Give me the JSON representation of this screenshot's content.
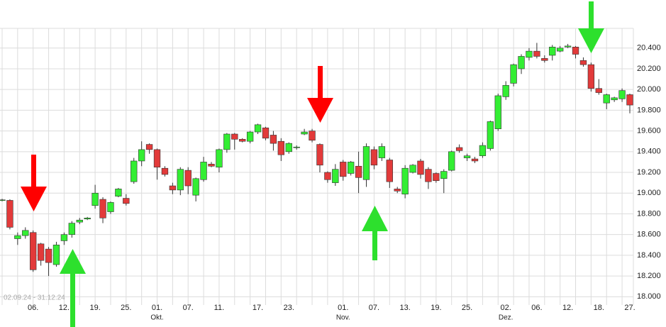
{
  "chart_data": {
    "type": "candlestick",
    "range_label": "02.09.24 - 31.12.24",
    "categories": [
      null,
      null,
      null,
      null,
      "06.",
      null,
      null,
      null,
      "12.",
      null,
      null,
      null,
      "19.",
      null,
      null,
      null,
      "25.",
      null,
      null,
      null,
      "01.",
      null,
      null,
      null,
      "07.",
      null,
      null,
      null,
      "11.",
      null,
      null,
      null,
      null,
      "17.",
      null,
      null,
      null,
      "23.",
      null,
      null,
      null,
      null,
      null,
      null,
      "01.",
      null,
      null,
      null,
      "07.",
      null,
      null,
      null,
      "13.",
      null,
      null,
      null,
      "19.",
      null,
      null,
      null,
      "25.",
      null,
      null,
      null,
      null,
      "02.",
      null,
      null,
      null,
      "06.",
      null,
      null,
      null,
      "12.",
      null,
      null,
      null,
      "18.",
      null,
      null,
      null,
      "27."
    ],
    "category_months": [
      null,
      null,
      null,
      null,
      null,
      null,
      null,
      null,
      null,
      null,
      null,
      null,
      null,
      null,
      null,
      null,
      null,
      null,
      null,
      null,
      "Okt.",
      null,
      null,
      null,
      null,
      null,
      null,
      null,
      null,
      null,
      null,
      null,
      null,
      null,
      null,
      null,
      null,
      null,
      null,
      null,
      null,
      null,
      null,
      null,
      "Nov.",
      null,
      null,
      null,
      null,
      null,
      null,
      null,
      null,
      null,
      null,
      null,
      null,
      null,
      null,
      null,
      null,
      null,
      null,
      null,
      null,
      "Dez.",
      null,
      null,
      null,
      null,
      null,
      null,
      null,
      null,
      null,
      null,
      null,
      null,
      null,
      null,
      null,
      null
    ],
    "candles": {
      "open": [
        18930,
        18930,
        18560,
        18590,
        18620,
        18510,
        18460,
        18310,
        18540,
        18600,
        18720,
        18750,
        18880,
        18940,
        18820,
        18970,
        18950,
        19110,
        19310,
        19470,
        19420,
        19240,
        19070,
        19030,
        19220,
        18980,
        19130,
        19280,
        19250,
        19420,
        19570,
        19520,
        19500,
        19590,
        19630,
        19560,
        19500,
        19400,
        19440,
        19570,
        19600,
        19470,
        19200,
        19100,
        19300,
        19190,
        19260,
        19130,
        19420,
        19340,
        19320,
        19040,
        18990,
        19200,
        19310,
        19230,
        19190,
        19140,
        19220,
        19440,
        19340,
        19330,
        19360,
        19430,
        19620,
        19930,
        20060,
        20200,
        20310,
        20370,
        20300,
        20330,
        20370,
        20410,
        20410,
        20280,
        20240,
        20010,
        19870,
        19900,
        19910,
        19950
      ],
      "high": [
        18945,
        18940,
        18620,
        18670,
        18640,
        18520,
        18480,
        18530,
        18620,
        18730,
        18760,
        18770,
        19080,
        18960,
        18920,
        19050,
        18990,
        19340,
        19500,
        19480,
        19430,
        19260,
        19100,
        19250,
        19250,
        19150,
        19350,
        19300,
        19430,
        19580,
        19580,
        19530,
        19600,
        19670,
        19640,
        19600,
        19530,
        19490,
        19460,
        19620,
        19620,
        19480,
        19210,
        19280,
        19320,
        19310,
        19400,
        19480,
        19450,
        19480,
        19340,
        19060,
        19270,
        19280,
        19330,
        19250,
        19200,
        19230,
        19410,
        19470,
        19380,
        19350,
        19490,
        19700,
        19960,
        20080,
        20250,
        20340,
        20400,
        20450,
        20330,
        20430,
        20420,
        20440,
        20420,
        20310,
        20260,
        20100,
        19960,
        19930,
        20010,
        19960
      ],
      "low": [
        18920,
        18650,
        18500,
        18560,
        18240,
        18300,
        18200,
        18290,
        18500,
        18570,
        18700,
        18740,
        18850,
        18710,
        18800,
        18960,
        18880,
        19090,
        19260,
        19380,
        19130,
        19160,
        18990,
        18980,
        18990,
        18920,
        19110,
        19250,
        19200,
        19390,
        19420,
        19490,
        19480,
        19570,
        19510,
        19410,
        19310,
        19380,
        19420,
        19560,
        19490,
        19200,
        19100,
        19070,
        19120,
        19170,
        19000,
        19060,
        19230,
        19310,
        19050,
        19000,
        18950,
        19190,
        19140,
        19040,
        19100,
        19000,
        19210,
        19390,
        19310,
        19290,
        19340,
        19410,
        19600,
        19900,
        20030,
        20150,
        20280,
        20300,
        20260,
        20280,
        20360,
        20400,
        20300,
        20220,
        19980,
        19950,
        19810,
        19880,
        19880,
        19770
      ],
      "close": [
        18935,
        18670,
        18590,
        18640,
        18260,
        18350,
        18330,
        18500,
        18600,
        18710,
        18740,
        18760,
        19000,
        18760,
        18910,
        19040,
        18900,
        19310,
        19420,
        19420,
        19250,
        19180,
        19030,
        19230,
        19070,
        19140,
        19300,
        19260,
        19420,
        19570,
        19520,
        19500,
        19590,
        19660,
        19530,
        19480,
        19370,
        19480,
        19445,
        19590,
        19510,
        19270,
        19130,
        19230,
        19160,
        19300,
        19150,
        19450,
        19270,
        19450,
        19110,
        19020,
        19240,
        19270,
        19180,
        19110,
        19120,
        19210,
        19400,
        19410,
        19360,
        19310,
        19460,
        19690,
        19940,
        20040,
        20240,
        20320,
        20370,
        20320,
        20280,
        20410,
        20400,
        20420,
        20340,
        20240,
        20010,
        19970,
        19950,
        19920,
        19990,
        19850
      ]
    },
    "up_color": "#33ee33",
    "down_color": "#e23a3a",
    "wick_color": "#333333",
    "ylim": [
      17920,
      20590
    ],
    "yticks": [
      {
        "value": 18000,
        "label": "18.000"
      },
      {
        "value": 18200,
        "label": "18.200"
      },
      {
        "value": 18400,
        "label": "18.400"
      },
      {
        "value": 18600,
        "label": "18.600"
      },
      {
        "value": 18800,
        "label": "18.800"
      },
      {
        "value": 19000,
        "label": "19.000"
      },
      {
        "value": 19200,
        "label": "19.200"
      },
      {
        "value": 19400,
        "label": "19.400"
      },
      {
        "value": 19600,
        "label": "19.600"
      },
      {
        "value": 19800,
        "label": "19.800"
      },
      {
        "value": 20000,
        "label": "20.000"
      },
      {
        "value": 20200,
        "label": "20.200"
      },
      {
        "value": 20400,
        "label": "20.400"
      }
    ],
    "grid": true
  }
}
